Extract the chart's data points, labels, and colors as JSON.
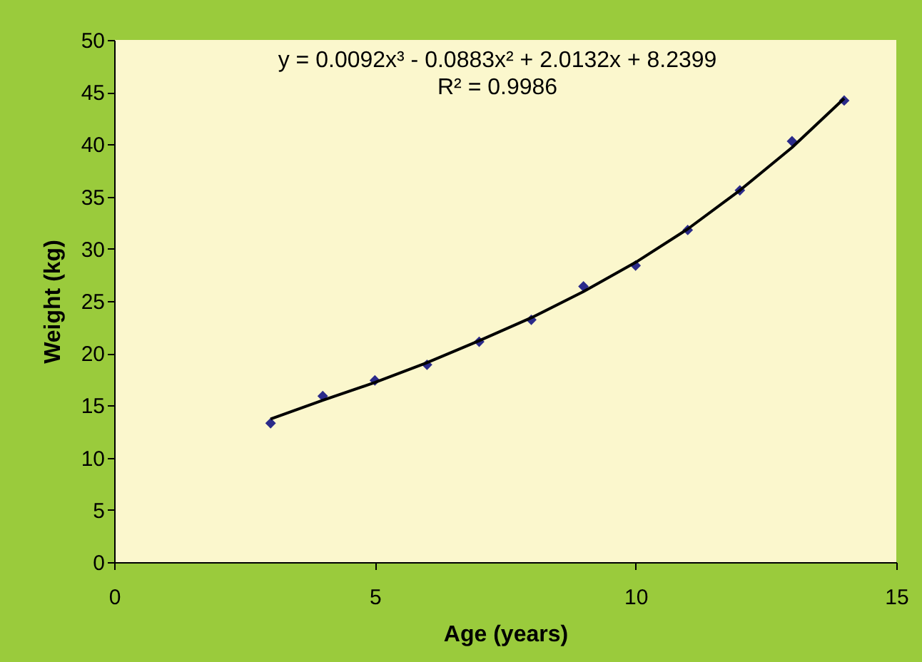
{
  "chart_data": {
    "type": "scatter",
    "xlabel": "Age (years)",
    "ylabel": "Weight (kg)",
    "annotations": [
      "y = 0.0092x³ - 0.0883x² + 2.0132x + 8.2399",
      "R² = 0.9986"
    ],
    "xlim": [
      0,
      15
    ],
    "xticks": [
      0,
      5,
      10,
      15
    ],
    "ylim": [
      0,
      50
    ],
    "yticks": [
      0,
      5,
      10,
      15,
      20,
      25,
      30,
      35,
      40,
      45,
      50
    ],
    "grid": false,
    "series": [
      {
        "color": "#2b2b8a",
        "marker": "diamond",
        "x": [
          3,
          4,
          5,
          6,
          7,
          8,
          9,
          10,
          11,
          12,
          13,
          14
        ],
        "values": [
          13.3,
          15.9,
          17.4,
          18.9,
          21.1,
          23.2,
          26.4,
          28.4,
          31.8,
          35.6,
          40.3,
          44.2
        ]
      },
      {
        "type": "line",
        "color": "#000000",
        "line_style": "solid",
        "x": [
          3,
          4,
          5,
          6,
          7,
          8,
          9,
          10,
          11,
          12,
          13,
          14
        ],
        "values": [
          13.7,
          15.5,
          17.2,
          19.1,
          21.2,
          23.4,
          25.9,
          28.7,
          31.9,
          35.6,
          39.7,
          44.4
        ]
      }
    ]
  }
}
